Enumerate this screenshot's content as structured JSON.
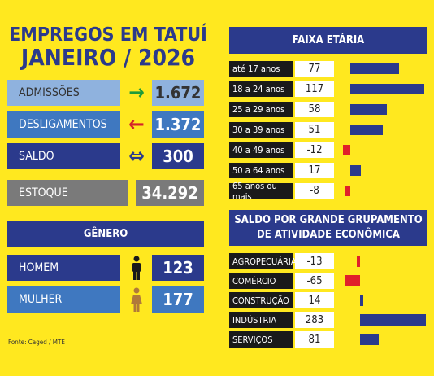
{
  "title_line1": "EMPREGOS EM TATUÍ",
  "title_line2": "JANEIRO / 2026",
  "summary": [
    {
      "label": "ADMISSÕES",
      "value": "1.672",
      "arrow": "→",
      "arrow_color": "#1e9b3a",
      "label_bg": "#8fb2de",
      "label_color": "#333"
    },
    {
      "label": "DESLIGAMENTOS",
      "value": "1.372",
      "arrow": "←",
      "arrow_color": "#d4232a",
      "label_bg": "#3f78c0",
      "label_color": "#fff"
    },
    {
      "label": "SALDO",
      "value": "300",
      "arrow": "⇔",
      "arrow_color": "#2b3a8c",
      "label_bg": "#2b3a8c",
      "label_color": "#fff"
    }
  ],
  "estoque": {
    "label": "ESTOQUE",
    "value": "34.292"
  },
  "genero": {
    "header": "GÊNERO",
    "rows": [
      {
        "label": "HOMEM",
        "value": "123",
        "icon": "male-icon"
      },
      {
        "label": "MULHER",
        "value": "177",
        "icon": "female-icon"
      }
    ]
  },
  "faixa": {
    "header": "FAIXA ETÁRIA",
    "rows": [
      {
        "label": "até 17 anos",
        "value": "77",
        "n": 77
      },
      {
        "label": "18 a 24 anos",
        "value": "117",
        "n": 117
      },
      {
        "label": "25 a 29 anos",
        "value": "58",
        "n": 58
      },
      {
        "label": "30 a 39 anos",
        "value": "51",
        "n": 51
      },
      {
        "label": "40 a 49 anos",
        "value": "-12",
        "n": -12
      },
      {
        "label": "50 a 64 anos",
        "value": "17",
        "n": 17
      },
      {
        "label": "65 anos ou mais",
        "value": "-8",
        "n": -8
      }
    ]
  },
  "setor": {
    "header_line1": "SALDO POR GRANDE GRUPAMENTO",
    "header_line2": "DE ATIVIDADE ECONÔMICA",
    "rows": [
      {
        "label": "AGROPECUÁRIA",
        "value": "-13",
        "n": -13
      },
      {
        "label": "COMÉRCIO",
        "value": "-65",
        "n": -65
      },
      {
        "label": "CONSTRUÇÃO",
        "value": "14",
        "n": 14
      },
      {
        "label": "INDÚSTRIA",
        "value": "283",
        "n": 283
      },
      {
        "label": "SERVIÇOS",
        "value": "81",
        "n": 81
      }
    ]
  },
  "colors": {
    "positive": "#2b3a8c",
    "negative": "#e0202a",
    "header": "#2b3a8c"
  },
  "footnote": "Fonte: Caged / MTE"
}
